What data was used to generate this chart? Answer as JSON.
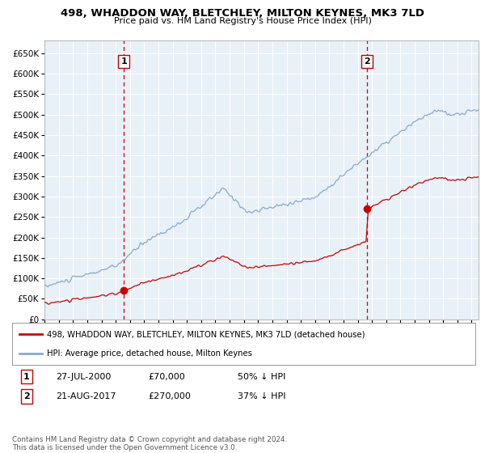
{
  "title": "498, WHADDON WAY, BLETCHLEY, MILTON KEYNES, MK3 7LD",
  "subtitle": "Price paid vs. HM Land Registry's House Price Index (HPI)",
  "xlim_start": 1995.0,
  "xlim_end": 2025.5,
  "ylim_min": 0,
  "ylim_max": 680000,
  "yticks": [
    0,
    50000,
    100000,
    150000,
    200000,
    250000,
    300000,
    350000,
    400000,
    450000,
    500000,
    550000,
    600000,
    650000
  ],
  "sale1_x": 2000.57,
  "sale1_y": 70000,
  "sale2_x": 2017.63,
  "sale2_y": 270000,
  "vline1_x": 2000.57,
  "vline2_x": 2017.63,
  "red_color": "#cc0000",
  "blue_color": "#88aacc",
  "vline_color": "#cc0000",
  "plot_bg_color": "#e8f0f8",
  "bg_color": "#ffffff",
  "grid_color": "#ffffff",
  "legend_label_red": "498, WHADDON WAY, BLETCHLEY, MILTON KEYNES, MK3 7LD (detached house)",
  "legend_label_blue": "HPI: Average price, detached house, Milton Keynes",
  "table_row1_num": "1",
  "table_row1_date": "27-JUL-2000",
  "table_row1_price": "£70,000",
  "table_row1_hpi": "50% ↓ HPI",
  "table_row2_num": "2",
  "table_row2_date": "21-AUG-2017",
  "table_row2_price": "£270,000",
  "table_row2_hpi": "37% ↓ HPI",
  "footnote": "Contains HM Land Registry data © Crown copyright and database right 2024.\nThis data is licensed under the Open Government Licence v3.0."
}
